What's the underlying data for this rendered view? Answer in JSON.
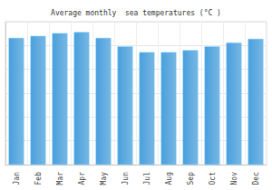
{
  "chart_data": {
    "type": "bar",
    "title": "Average monthly  sea temperatures (°C )",
    "categories": [
      "Jan",
      "Feb",
      "Mar",
      "Apr",
      "May",
      "Jun",
      "Jul",
      "Aug",
      "Sep",
      "Oct",
      "Nov",
      "Dec"
    ],
    "values": [
      26.6,
      27.0,
      27.6,
      27.8,
      26.6,
      24.8,
      23.6,
      23.6,
      24.0,
      24.8,
      25.6,
      26.4
    ],
    "color": "#4a9fdc",
    "ylim": [
      0,
      30
    ],
    "yticks": [
      0,
      5,
      10,
      15,
      20,
      25,
      30
    ],
    "grid": true,
    "tick_labels": "x"
  }
}
